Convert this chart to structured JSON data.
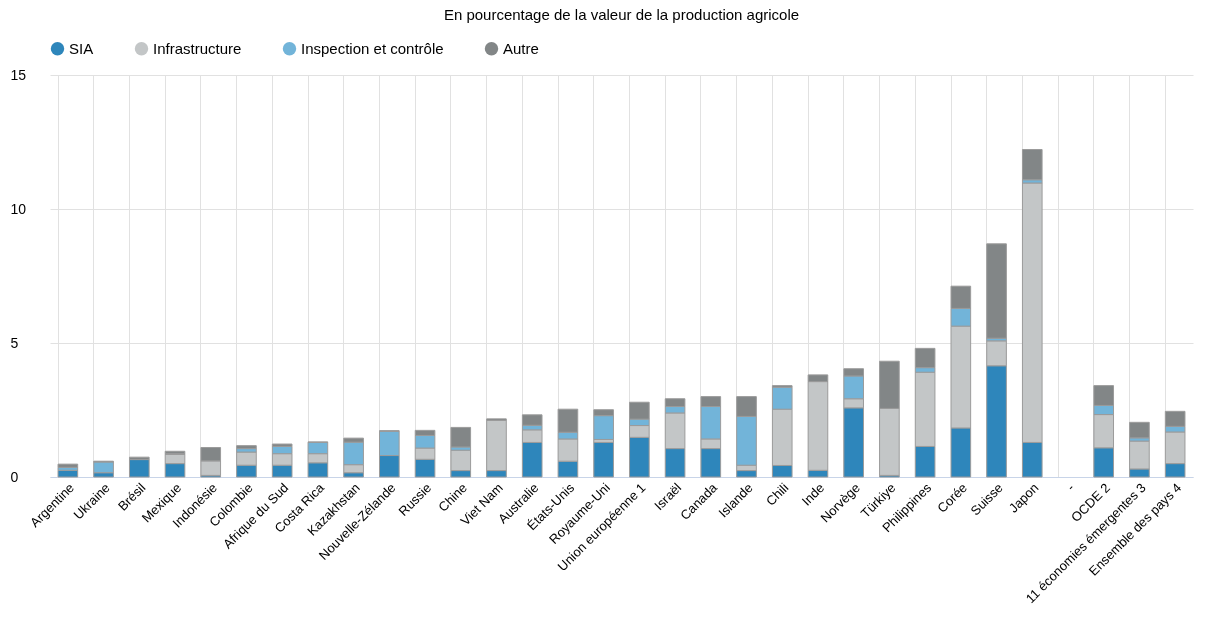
{
  "chart_data": {
    "type": "bar",
    "stacked": true,
    "title": "En pourcentage de la valeur de la production agricole",
    "categories": [
      "Argentine",
      "Ukraine",
      "Brésil",
      "Mexique",
      "Indonésie",
      "Colombie",
      "Afrique du Sud",
      "Costa Rica",
      "Kazakhstan",
      "Nouvelle-Zélande",
      "Russie",
      "Chine",
      "Viet Nam",
      "Australie",
      "États-Unis",
      "Royaume-Uni",
      "Union européenne 1",
      "Israël",
      "Canada",
      "Islande",
      "Chili",
      "Inde",
      "Norvège",
      "Türkiye",
      "Philippines",
      "Corée",
      "Suisse",
      "Japon",
      "-",
      "OCDE 2",
      "11 économies émergentes 3",
      "Ensemble des pays 4"
    ],
    "series": [
      {
        "name": "SIA",
        "color": "#2e86bb",
        "values": [
          0.25,
          0.16,
          0.65,
          0.5,
          0.06,
          0.44,
          0.44,
          0.53,
          0.16,
          0.8,
          0.66,
          0.24,
          0.24,
          1.29,
          0.59,
          1.29,
          1.48,
          1.06,
          1.06,
          0.24,
          0.43,
          0.25,
          2.58,
          0.06,
          1.14,
          1.83,
          4.15,
          1.29,
          null,
          1.09,
          0.3,
          0.5
        ]
      },
      {
        "name": "Infrastructure",
        "color": "#c3c6c7",
        "values": [
          null,
          null,
          null,
          0.34,
          0.54,
          0.49,
          0.43,
          0.34,
          0.3,
          null,
          0.42,
          0.76,
          1.87,
          0.47,
          0.83,
          0.11,
          0.44,
          1.33,
          0.36,
          0.2,
          2.1,
          3.31,
          0.34,
          2.5,
          2.77,
          3.8,
          0.93,
          9.68,
          null,
          1.24,
          1.04,
          1.18
        ]
      },
      {
        "name": "Inspection et contrôle",
        "color": "#72b4d9",
        "values": [
          0.11,
          0.4,
          null,
          0.03,
          null,
          0.13,
          0.27,
          0.42,
          0.84,
          0.9,
          0.47,
          0.12,
          null,
          0.17,
          0.25,
          0.89,
          0.24,
          0.24,
          1.21,
          1.82,
          0.82,
          null,
          0.85,
          null,
          0.17,
          0.66,
          0.1,
          0.12,
          null,
          0.34,
          0.12,
          0.21
        ]
      },
      {
        "name": "Autre",
        "color": "#828687",
        "values": [
          0.12,
          0.03,
          0.09,
          0.09,
          0.5,
          0.11,
          0.09,
          0.02,
          0.15,
          0.03,
          0.19,
          0.73,
          0.06,
          0.39,
          0.86,
          0.22,
          0.63,
          0.29,
          0.37,
          0.74,
          0.06,
          0.25,
          0.27,
          1.76,
          0.72,
          0.83,
          3.52,
          1.13,
          null,
          0.74,
          0.58,
          0.56
        ]
      }
    ],
    "ylim": [
      0,
      15
    ],
    "yticks": [
      0,
      5,
      10,
      15
    ],
    "grid": true,
    "legend": "top"
  }
}
